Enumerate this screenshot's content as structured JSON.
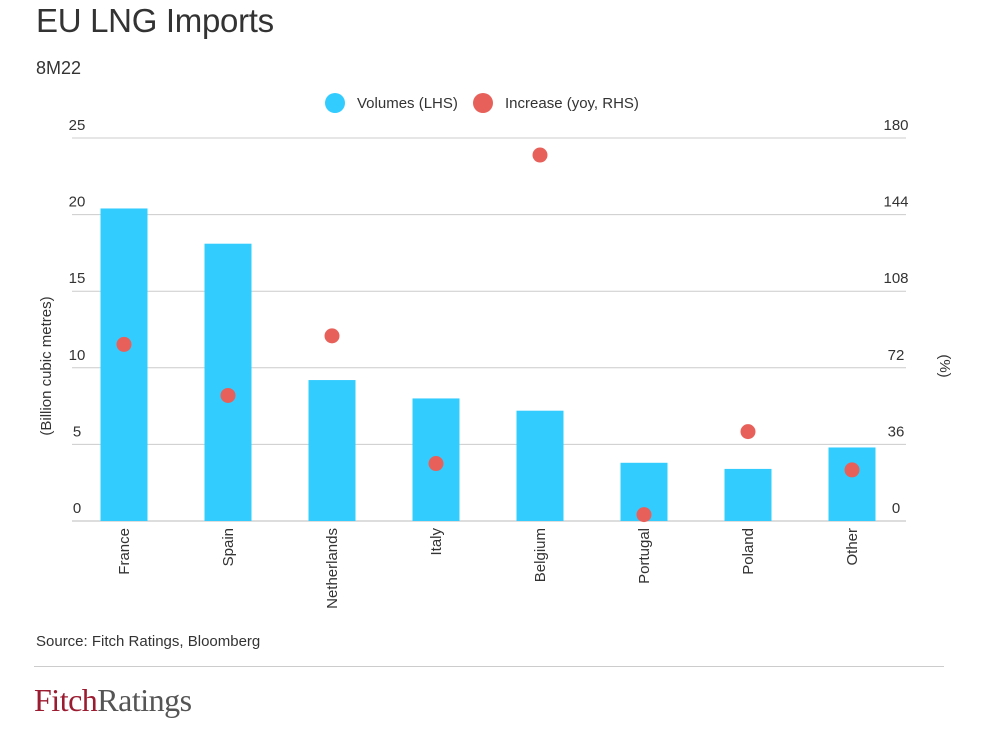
{
  "header": {
    "title": "EU LNG Imports",
    "subtitle": "8M22"
  },
  "footer": {
    "source": "Source: Fitch Ratings, Bloomberg",
    "brand_left": "Fitch",
    "brand_right": "Ratings"
  },
  "colors": {
    "bar": "#33ccff",
    "dot": "#e8605a",
    "grid": "#cccccc",
    "text": "#333333"
  },
  "chart_data": {
    "type": "bar",
    "title": "EU LNG Imports",
    "subtitle": "8M22",
    "categories": [
      "France",
      "Spain",
      "Netherlands",
      "Italy",
      "Belgium",
      "Portugal",
      "Poland",
      "Other"
    ],
    "series": [
      {
        "name": "Volumes (LHS)",
        "type": "bar",
        "axis": "left",
        "values": [
          20.4,
          18.1,
          9.2,
          8.0,
          7.2,
          3.8,
          3.4,
          4.8
        ]
      },
      {
        "name": "Increase (yoy, RHS)",
        "type": "scatter",
        "axis": "right",
        "values": [
          83,
          59,
          87,
          27,
          172,
          3,
          42,
          24
        ]
      }
    ],
    "ylabel": "(Billion cubic metres)",
    "ylabel_right": "(%)",
    "ylim": [
      0,
      25
    ],
    "ylim_right": [
      0,
      180
    ],
    "yticks": [
      "0",
      "5",
      "10",
      "15",
      "20",
      "25"
    ],
    "yticks_right": [
      "0",
      "36",
      "72",
      "108",
      "144",
      "180"
    ],
    "legend_position": "top-center",
    "grid": true
  }
}
